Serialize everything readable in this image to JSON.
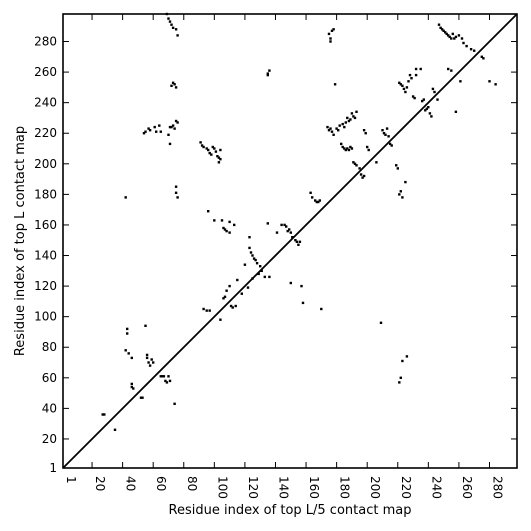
{
  "chart_data": {
    "type": "scatter",
    "title": "",
    "xlabel": "Residue index of top L/5 contact map",
    "ylabel": "Residue index of top L contact map",
    "xlim": [
      1,
      298
    ],
    "ylim": [
      1,
      298
    ],
    "x_ticks": [
      1,
      20,
      40,
      60,
      80,
      100,
      120,
      140,
      160,
      180,
      200,
      220,
      240,
      260,
      280
    ],
    "y_ticks": [
      1,
      20,
      40,
      60,
      80,
      100,
      120,
      140,
      160,
      180,
      200,
      220,
      240,
      260,
      280
    ],
    "grid": false,
    "legend": "none",
    "diagonal": {
      "from": [
        1,
        1
      ],
      "to": [
        298,
        298
      ]
    },
    "colors": {
      "points": "#000000",
      "line": "#000000",
      "frame": "#000000"
    },
    "series": [
      {
        "points": [
          [
            27,
            36
          ],
          [
            28,
            36
          ],
          [
            35,
            26
          ],
          [
            42,
            178
          ],
          [
            43,
            92
          ],
          [
            43,
            89
          ],
          [
            42,
            78
          ],
          [
            44,
            76
          ],
          [
            46,
            73
          ],
          [
            46,
            56
          ],
          [
            46,
            54
          ],
          [
            47,
            53
          ],
          [
            52,
            47
          ],
          [
            53,
            47
          ],
          [
            55,
            94
          ],
          [
            56,
            75
          ],
          [
            56,
            73
          ],
          [
            57,
            70
          ],
          [
            58,
            68
          ],
          [
            59,
            72
          ],
          [
            60,
            70
          ],
          [
            65,
            61
          ],
          [
            66,
            61
          ],
          [
            67,
            61
          ],
          [
            68,
            58
          ],
          [
            69,
            57
          ],
          [
            70,
            61
          ],
          [
            71,
            58
          ],
          [
            74,
            43
          ],
          [
            69,
            298
          ],
          [
            70,
            295
          ],
          [
            71,
            293
          ],
          [
            72,
            291
          ],
          [
            73,
            289
          ],
          [
            75,
            288
          ],
          [
            76,
            284
          ],
          [
            72,
            251
          ],
          [
            74,
            252
          ],
          [
            75,
            250
          ],
          [
            73,
            253
          ],
          [
            54,
            220
          ],
          [
            55,
            221
          ],
          [
            57,
            223
          ],
          [
            58,
            222
          ],
          [
            61,
            224
          ],
          [
            62,
            221
          ],
          [
            64,
            225
          ],
          [
            65,
            221
          ],
          [
            70,
            219
          ],
          [
            71,
            224
          ],
          [
            72,
            224
          ],
          [
            73,
            225
          ],
          [
            74,
            223
          ],
          [
            75,
            228
          ],
          [
            76,
            227
          ],
          [
            71,
            213
          ],
          [
            75,
            185
          ],
          [
            75,
            181
          ],
          [
            76,
            178
          ],
          [
            91,
            214
          ],
          [
            92,
            212
          ],
          [
            93,
            211
          ],
          [
            95,
            210
          ],
          [
            96,
            209
          ],
          [
            97,
            207
          ],
          [
            98,
            206
          ],
          [
            99,
            211
          ],
          [
            100,
            210
          ],
          [
            101,
            208
          ],
          [
            102,
            205
          ],
          [
            103,
            204
          ],
          [
            104,
            203
          ],
          [
            104,
            209
          ],
          [
            103,
            201
          ],
          [
            96,
            169
          ],
          [
            100,
            163
          ],
          [
            105,
            163
          ],
          [
            106,
            158
          ],
          [
            107,
            157
          ],
          [
            108,
            156
          ],
          [
            110,
            155
          ],
          [
            110,
            162
          ],
          [
            113,
            160
          ],
          [
            93,
            105
          ],
          [
            95,
            104
          ],
          [
            97,
            104
          ],
          [
            104,
            98
          ],
          [
            106,
            112
          ],
          [
            107,
            113
          ],
          [
            108,
            117
          ],
          [
            110,
            120
          ],
          [
            111,
            107
          ],
          [
            112,
            106
          ],
          [
            114,
            107
          ],
          [
            115,
            124
          ],
          [
            118,
            115
          ],
          [
            123,
            152
          ],
          [
            123,
            145
          ],
          [
            124,
            142
          ],
          [
            125,
            140
          ],
          [
            126,
            138
          ],
          [
            127,
            137
          ],
          [
            128,
            135
          ],
          [
            130,
            133
          ],
          [
            131,
            130
          ],
          [
            120,
            134
          ],
          [
            122,
            119
          ],
          [
            125,
            125
          ],
          [
            129,
            128
          ],
          [
            133,
            126
          ],
          [
            136,
            126
          ],
          [
            135,
            161
          ],
          [
            135,
            258
          ],
          [
            136,
            261
          ],
          [
            135,
            259
          ],
          [
            141,
            155
          ],
          [
            144,
            160
          ],
          [
            146,
            160
          ],
          [
            147,
            159
          ],
          [
            148,
            156
          ],
          [
            149,
            157
          ],
          [
            150,
            155
          ],
          [
            150,
            122
          ],
          [
            151,
            152
          ],
          [
            153,
            150
          ],
          [
            154,
            149
          ],
          [
            155,
            147
          ],
          [
            156,
            149
          ],
          [
            157,
            120
          ],
          [
            158,
            109
          ],
          [
            163,
            181
          ],
          [
            164,
            178
          ],
          [
            166,
            176
          ],
          [
            167,
            175
          ],
          [
            168,
            175
          ],
          [
            169,
            176
          ],
          [
            170,
            105
          ],
          [
            175,
            285
          ],
          [
            176,
            282
          ],
          [
            176,
            280
          ],
          [
            177,
            287
          ],
          [
            178,
            288
          ],
          [
            174,
            224
          ],
          [
            175,
            222
          ],
          [
            176,
            223
          ],
          [
            177,
            221
          ],
          [
            178,
            219
          ],
          [
            179,
            252
          ],
          [
            180,
            223
          ],
          [
            181,
            222
          ],
          [
            182,
            225
          ],
          [
            184,
            226
          ],
          [
            185,
            224
          ],
          [
            186,
            227
          ],
          [
            187,
            230
          ],
          [
            188,
            228
          ],
          [
            189,
            229
          ],
          [
            190,
            233
          ],
          [
            191,
            231
          ],
          [
            192,
            230
          ],
          [
            193,
            234
          ],
          [
            183,
            213
          ],
          [
            184,
            211
          ],
          [
            185,
            210
          ],
          [
            186,
            209
          ],
          [
            187,
            210
          ],
          [
            188,
            209
          ],
          [
            189,
            211
          ],
          [
            190,
            210
          ],
          [
            191,
            201
          ],
          [
            192,
            200
          ],
          [
            193,
            199
          ],
          [
            195,
            197
          ],
          [
            196,
            193
          ],
          [
            197,
            191
          ],
          [
            198,
            192
          ],
          [
            198,
            222
          ],
          [
            199,
            220
          ],
          [
            200,
            211
          ],
          [
            201,
            209
          ],
          [
            206,
            201
          ],
          [
            209,
            96
          ],
          [
            210,
            222
          ],
          [
            211,
            220
          ],
          [
            212,
            219
          ],
          [
            213,
            223
          ],
          [
            214,
            218
          ],
          [
            219,
            199
          ],
          [
            220,
            197
          ],
          [
            221,
            180
          ],
          [
            222,
            182
          ],
          [
            223,
            178
          ],
          [
            225,
            188
          ],
          [
            222,
            60
          ],
          [
            221,
            57
          ],
          [
            223,
            71
          ],
          [
            226,
            74
          ],
          [
            215,
            213
          ],
          [
            216,
            212
          ],
          [
            221,
            253
          ],
          [
            222,
            252
          ],
          [
            223,
            251
          ],
          [
            224,
            249
          ],
          [
            225,
            247
          ],
          [
            226,
            250
          ],
          [
            227,
            254
          ],
          [
            228,
            258
          ],
          [
            229,
            256
          ],
          [
            230,
            244
          ],
          [
            231,
            243
          ],
          [
            232,
            258
          ],
          [
            232,
            262
          ],
          [
            235,
            262
          ],
          [
            236,
            241
          ],
          [
            237,
            242
          ],
          [
            238,
            235
          ],
          [
            239,
            236
          ],
          [
            240,
            237
          ],
          [
            241,
            233
          ],
          [
            242,
            231
          ],
          [
            243,
            249
          ],
          [
            244,
            247
          ],
          [
            246,
            242
          ],
          [
            247,
            291
          ],
          [
            248,
            289
          ],
          [
            249,
            288
          ],
          [
            250,
            287
          ],
          [
            251,
            286
          ],
          [
            252,
            285
          ],
          [
            253,
            284
          ],
          [
            254,
            283
          ],
          [
            255,
            282
          ],
          [
            256,
            285
          ],
          [
            257,
            282
          ],
          [
            258,
            283
          ],
          [
            260,
            284
          ],
          [
            262,
            282
          ],
          [
            263,
            279
          ],
          [
            265,
            277
          ],
          [
            268,
            275
          ],
          [
            270,
            274
          ],
          [
            275,
            270
          ],
          [
            276,
            269
          ],
          [
            280,
            254
          ],
          [
            284,
            252
          ],
          [
            253,
            262
          ],
          [
            255,
            261
          ],
          [
            258,
            234
          ],
          [
            261,
            254
          ]
        ]
      }
    ]
  }
}
